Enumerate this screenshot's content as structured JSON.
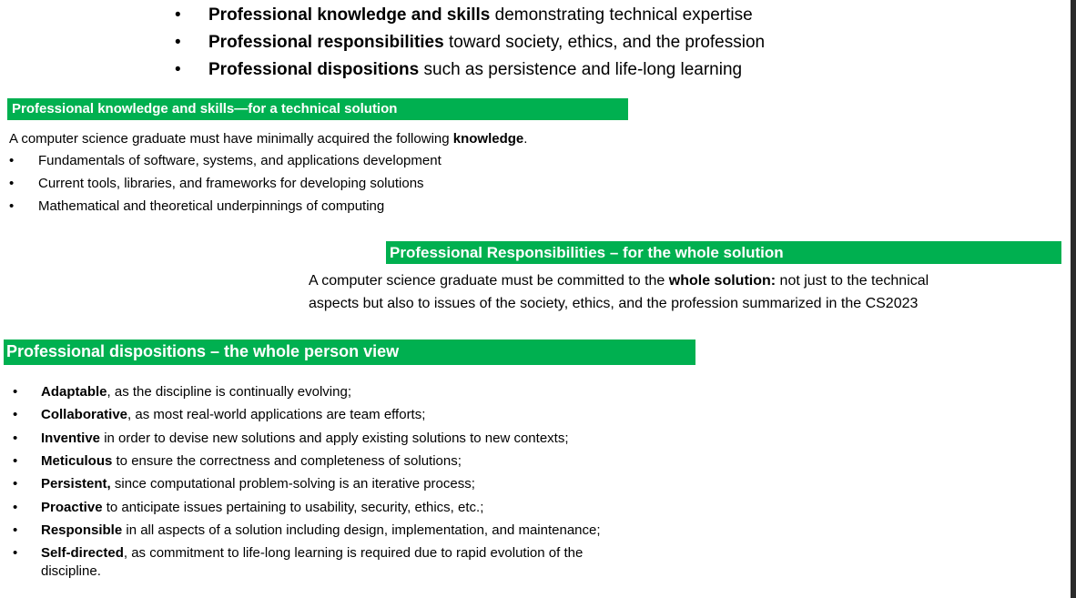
{
  "top_items": [
    {
      "bold": "Professional knowledge and skills",
      "rest": " demonstrating technical expertise"
    },
    {
      "bold": "Professional responsibilities",
      "rest": " toward society, ethics, and the profession"
    },
    {
      "bold": "Professional dispositions",
      "rest": " such as persistence and life-long learning"
    }
  ],
  "section1": {
    "heading": "Professional knowledge and skills—for a technical solution",
    "intro_pre": "A computer science graduate must have minimally acquired the following ",
    "intro_bold": "knowledge",
    "intro_post": ".",
    "items": [
      "Fundamentals of software, systems, and applications development",
      "Current tools, libraries, and frameworks for developing solutions",
      "Mathematical and theoretical underpinnings of computing"
    ]
  },
  "section2": {
    "heading": "Professional Responsibilities – for the whole solution",
    "line1_pre": "A computer science graduate must be committed to the ",
    "line1_bold": "whole solution:",
    "line1_post": " not just to the technical",
    "line2": "aspects but also to issues of the society, ethics, and the profession summarized in the CS2023"
  },
  "section3": {
    "heading": "Professional dispositions – the whole person view",
    "items": [
      {
        "bold": "Adaptable",
        "rest": ", as the discipline is continually evolving;"
      },
      {
        "bold": "Collaborative",
        "rest": ", as most real-world applications are team efforts;"
      },
      {
        "bold": "Inventive",
        "rest": " in order to devise new solutions and apply existing solutions to new contexts;"
      },
      {
        "bold": "Meticulous",
        "rest": " to ensure the correctness and completeness of solutions;"
      },
      {
        "bold": "Persistent,",
        "rest": " since computational problem-solving is an iterative process;"
      },
      {
        "bold": "Proactive",
        "rest": " to anticipate issues pertaining to usability, security, ethics, etc.;"
      },
      {
        "bold": "Responsible",
        "rest": " in all aspects of a solution including design, implementation, and maintenance;"
      },
      {
        "bold": "Self-directed",
        "rest": ", as commitment to life-long learning is required due to rapid evolution of the",
        "continuation": "discipline."
      }
    ]
  },
  "colors": {
    "heading_bg": "#00b050",
    "heading_text": "#ffffff",
    "scrollbar": "#2b2b2b"
  }
}
